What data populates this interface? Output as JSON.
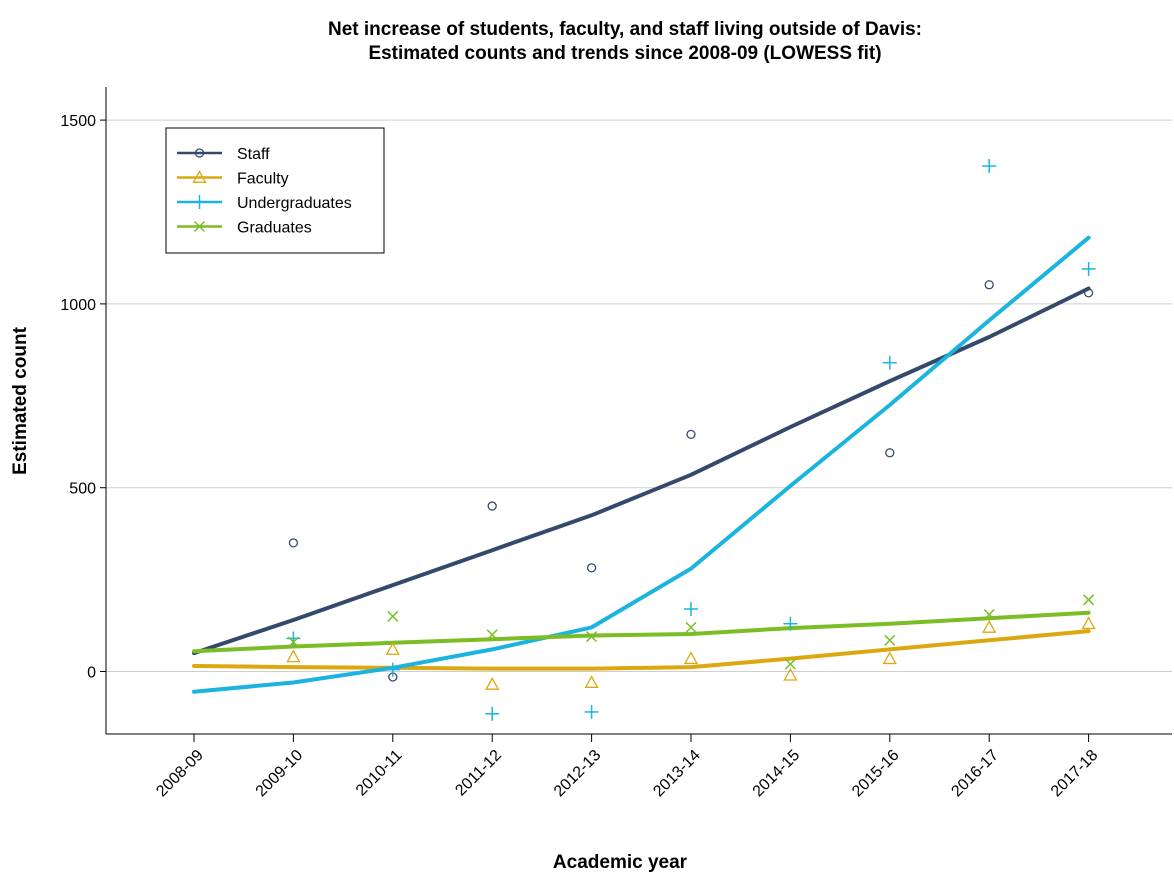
{
  "chart_data": {
    "type": "line",
    "title": "Net increase of students, faculty, and staff living outside of Davis:",
    "subtitle": "Estimated counts and trends since 2008-09 (LOWESS fit)",
    "xlabel": "Academic year",
    "ylabel": "Estimated count",
    "categories": [
      "2008-09",
      "2009-10",
      "2010-11",
      "2011-12",
      "2012-13",
      "2013-14",
      "2014-15",
      "2015-16",
      "2016-17",
      "2017-18"
    ],
    "ylim": [
      -170,
      1590
    ],
    "yticks": [
      0,
      500,
      1000,
      1500
    ],
    "grid": true,
    "legend_position": "top-left",
    "series": [
      {
        "name": "Staff",
        "color": "#34496b",
        "marker": "circle",
        "points": [
          null,
          350,
          -15,
          450,
          282,
          645,
          null,
          595,
          1052,
          1030
        ],
        "trend": [
          50,
          140,
          235,
          330,
          425,
          535,
          665,
          790,
          910,
          1042
        ]
      },
      {
        "name": "Faculty",
        "color": "#dba811",
        "marker": "triangle",
        "points": [
          null,
          40,
          60,
          -35,
          -30,
          35,
          -10,
          35,
          120,
          130
        ],
        "trend": [
          15,
          12,
          10,
          8,
          8,
          12,
          35,
          60,
          85,
          110
        ]
      },
      {
        "name": "Undergraduates",
        "color": "#1bb4de",
        "marker": "plus",
        "points": [
          null,
          90,
          5,
          -115,
          -110,
          170,
          130,
          840,
          1375,
          1095
        ],
        "trend": [
          -55,
          -30,
          10,
          60,
          120,
          280,
          505,
          725,
          955,
          1180
        ]
      },
      {
        "name": "Graduates",
        "color": "#7bbd24",
        "marker": "x",
        "points": [
          null,
          80,
          150,
          100,
          95,
          120,
          20,
          85,
          155,
          195
        ],
        "trend": [
          55,
          68,
          78,
          88,
          98,
          102,
          118,
          130,
          145,
          160
        ]
      }
    ]
  }
}
